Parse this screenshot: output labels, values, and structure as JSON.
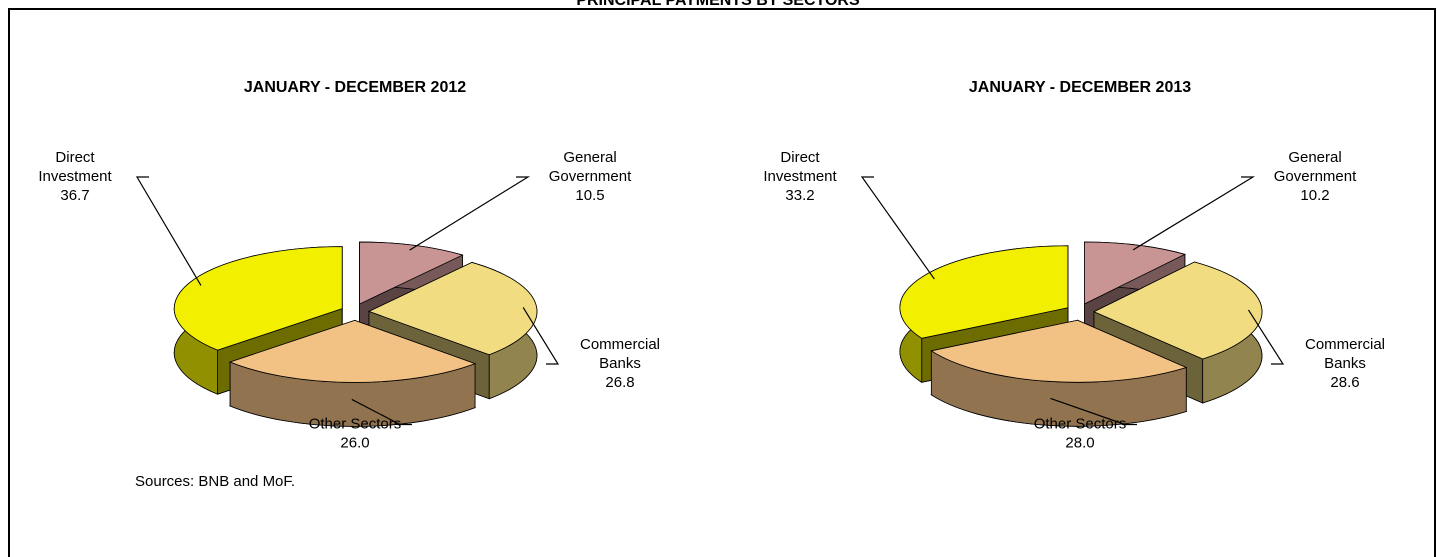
{
  "title": "PRINCIPAL PAYMENTS BY SECTORS",
  "source": "Sources: BNB and MoF.",
  "chart_data": [
    {
      "type": "pie",
      "title": "JANUARY - DECEMBER 2012",
      "categories": [
        "General\nGovernment",
        "Commercial\nBanks",
        "Other Sectors",
        "Direct\nInvestment"
      ],
      "values": [
        10.5,
        26.8,
        26.0,
        36.7
      ],
      "value_labels": [
        "10.5",
        "26.8",
        "26.0",
        "36.7"
      ],
      "colors": [
        "#c89494",
        "#f2dc82",
        "#f2c184",
        "#f2f000"
      ]
    },
    {
      "type": "pie",
      "title": "JANUARY - DECEMBER 2013",
      "categories": [
        "General\nGovernment",
        "Commercial\nBanks",
        "Other Sectors",
        "Direct\nInvestment"
      ],
      "values": [
        10.2,
        28.6,
        28.0,
        33.2
      ],
      "value_labels": [
        "10.2",
        "28.6",
        "28.0",
        "33.2"
      ],
      "colors": [
        "#c89494",
        "#f2dc82",
        "#f2c184",
        "#f2f000"
      ]
    }
  ]
}
